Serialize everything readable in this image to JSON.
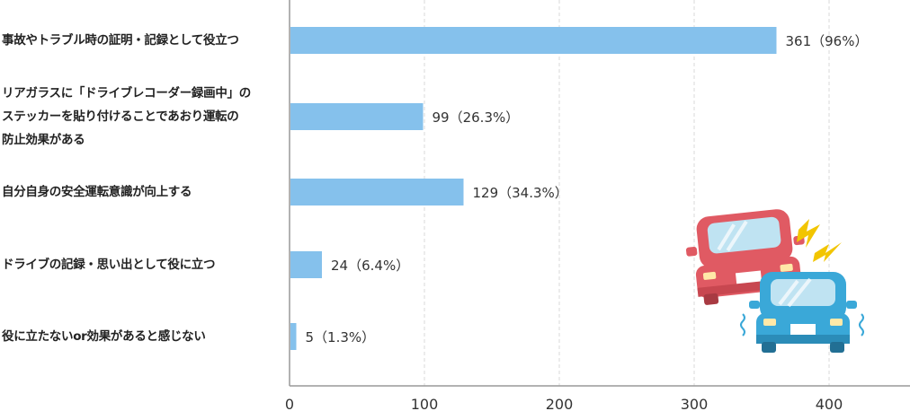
{
  "chart_data": {
    "type": "bar",
    "orientation": "horizontal",
    "categories": [
      [
        "事故やトラブル時の証明・記録として役立つ"
      ],
      [
        "リアガラスに「ドライブレコーダー録画中」の",
        "ステッカーを貼り付けることであおり運転の",
        "防止効果がある"
      ],
      [
        "自分自身の安全運転意識が向上する"
      ],
      [
        "ドライブの記録・思い出として役に立つ"
      ],
      [
        "役に立たないor効果があると感じない"
      ]
    ],
    "values": [
      361,
      99,
      129,
      24,
      5
    ],
    "data_labels": [
      "361（96%）",
      "99（26.3%）",
      "129（34.3%）",
      "24（6.4%）",
      "5（1.3%）"
    ],
    "xlim": [
      0,
      460
    ],
    "xticks": [
      0,
      100,
      200,
      300,
      400
    ],
    "xtick_labels": [
      "0",
      "100",
      "200",
      "300",
      "400"
    ],
    "grid": true,
    "colors": {
      "bar": "#85c1ec",
      "grid": "#d8d8d8",
      "axis": "#999999"
    }
  },
  "illustration": {
    "name": "car-collision-illustration",
    "colors": {
      "red_car": "#e05a63",
      "blue_car": "#3aa8d8",
      "spark": "#f2c500"
    }
  }
}
